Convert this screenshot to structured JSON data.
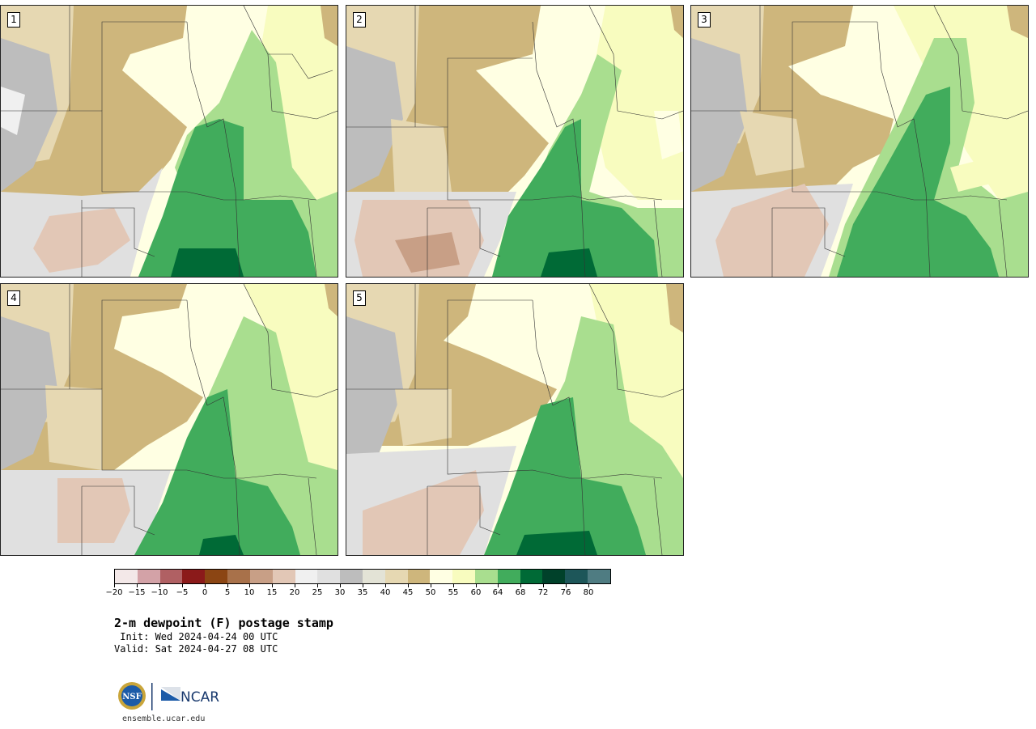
{
  "panels": [
    {
      "label": "1"
    },
    {
      "label": "2"
    },
    {
      "label": "3"
    },
    {
      "label": "4"
    },
    {
      "label": "5"
    }
  ],
  "colorbar": {
    "colors": [
      "#f3e8e8",
      "#d3a2a7",
      "#b06063",
      "#8b1a1a",
      "#8b4513",
      "#a8714a",
      "#c89f86",
      "#e2c7b6",
      "#f0f0f0",
      "#e0e0e0",
      "#bdbdbd",
      "#e3e3d6",
      "#e6d8b2",
      "#ceb67c",
      "#ffffe3",
      "#f8fcbf",
      "#a9de8f",
      "#41ac5c",
      "#006a36",
      "#00412a",
      "#1d5659",
      "#4f7c82"
    ],
    "tick_labels": [
      "−20",
      "−15",
      "−10",
      "−5",
      "0",
      "5",
      "10",
      "15",
      "20",
      "25",
      "30",
      "35",
      "40",
      "45",
      "50",
      "55",
      "60",
      "64",
      "68",
      "72",
      "76",
      "80"
    ]
  },
  "title": "2-m dewpoint (F) postage stamp",
  "init": " Init: Wed 2024-04-24 00 UTC",
  "valid": "Valid: Sat 2024-04-27 08 UTC",
  "logos": {
    "nsf": "NSF",
    "ncar": "NCAR"
  },
  "site": "ensemble.ucar.edu"
}
